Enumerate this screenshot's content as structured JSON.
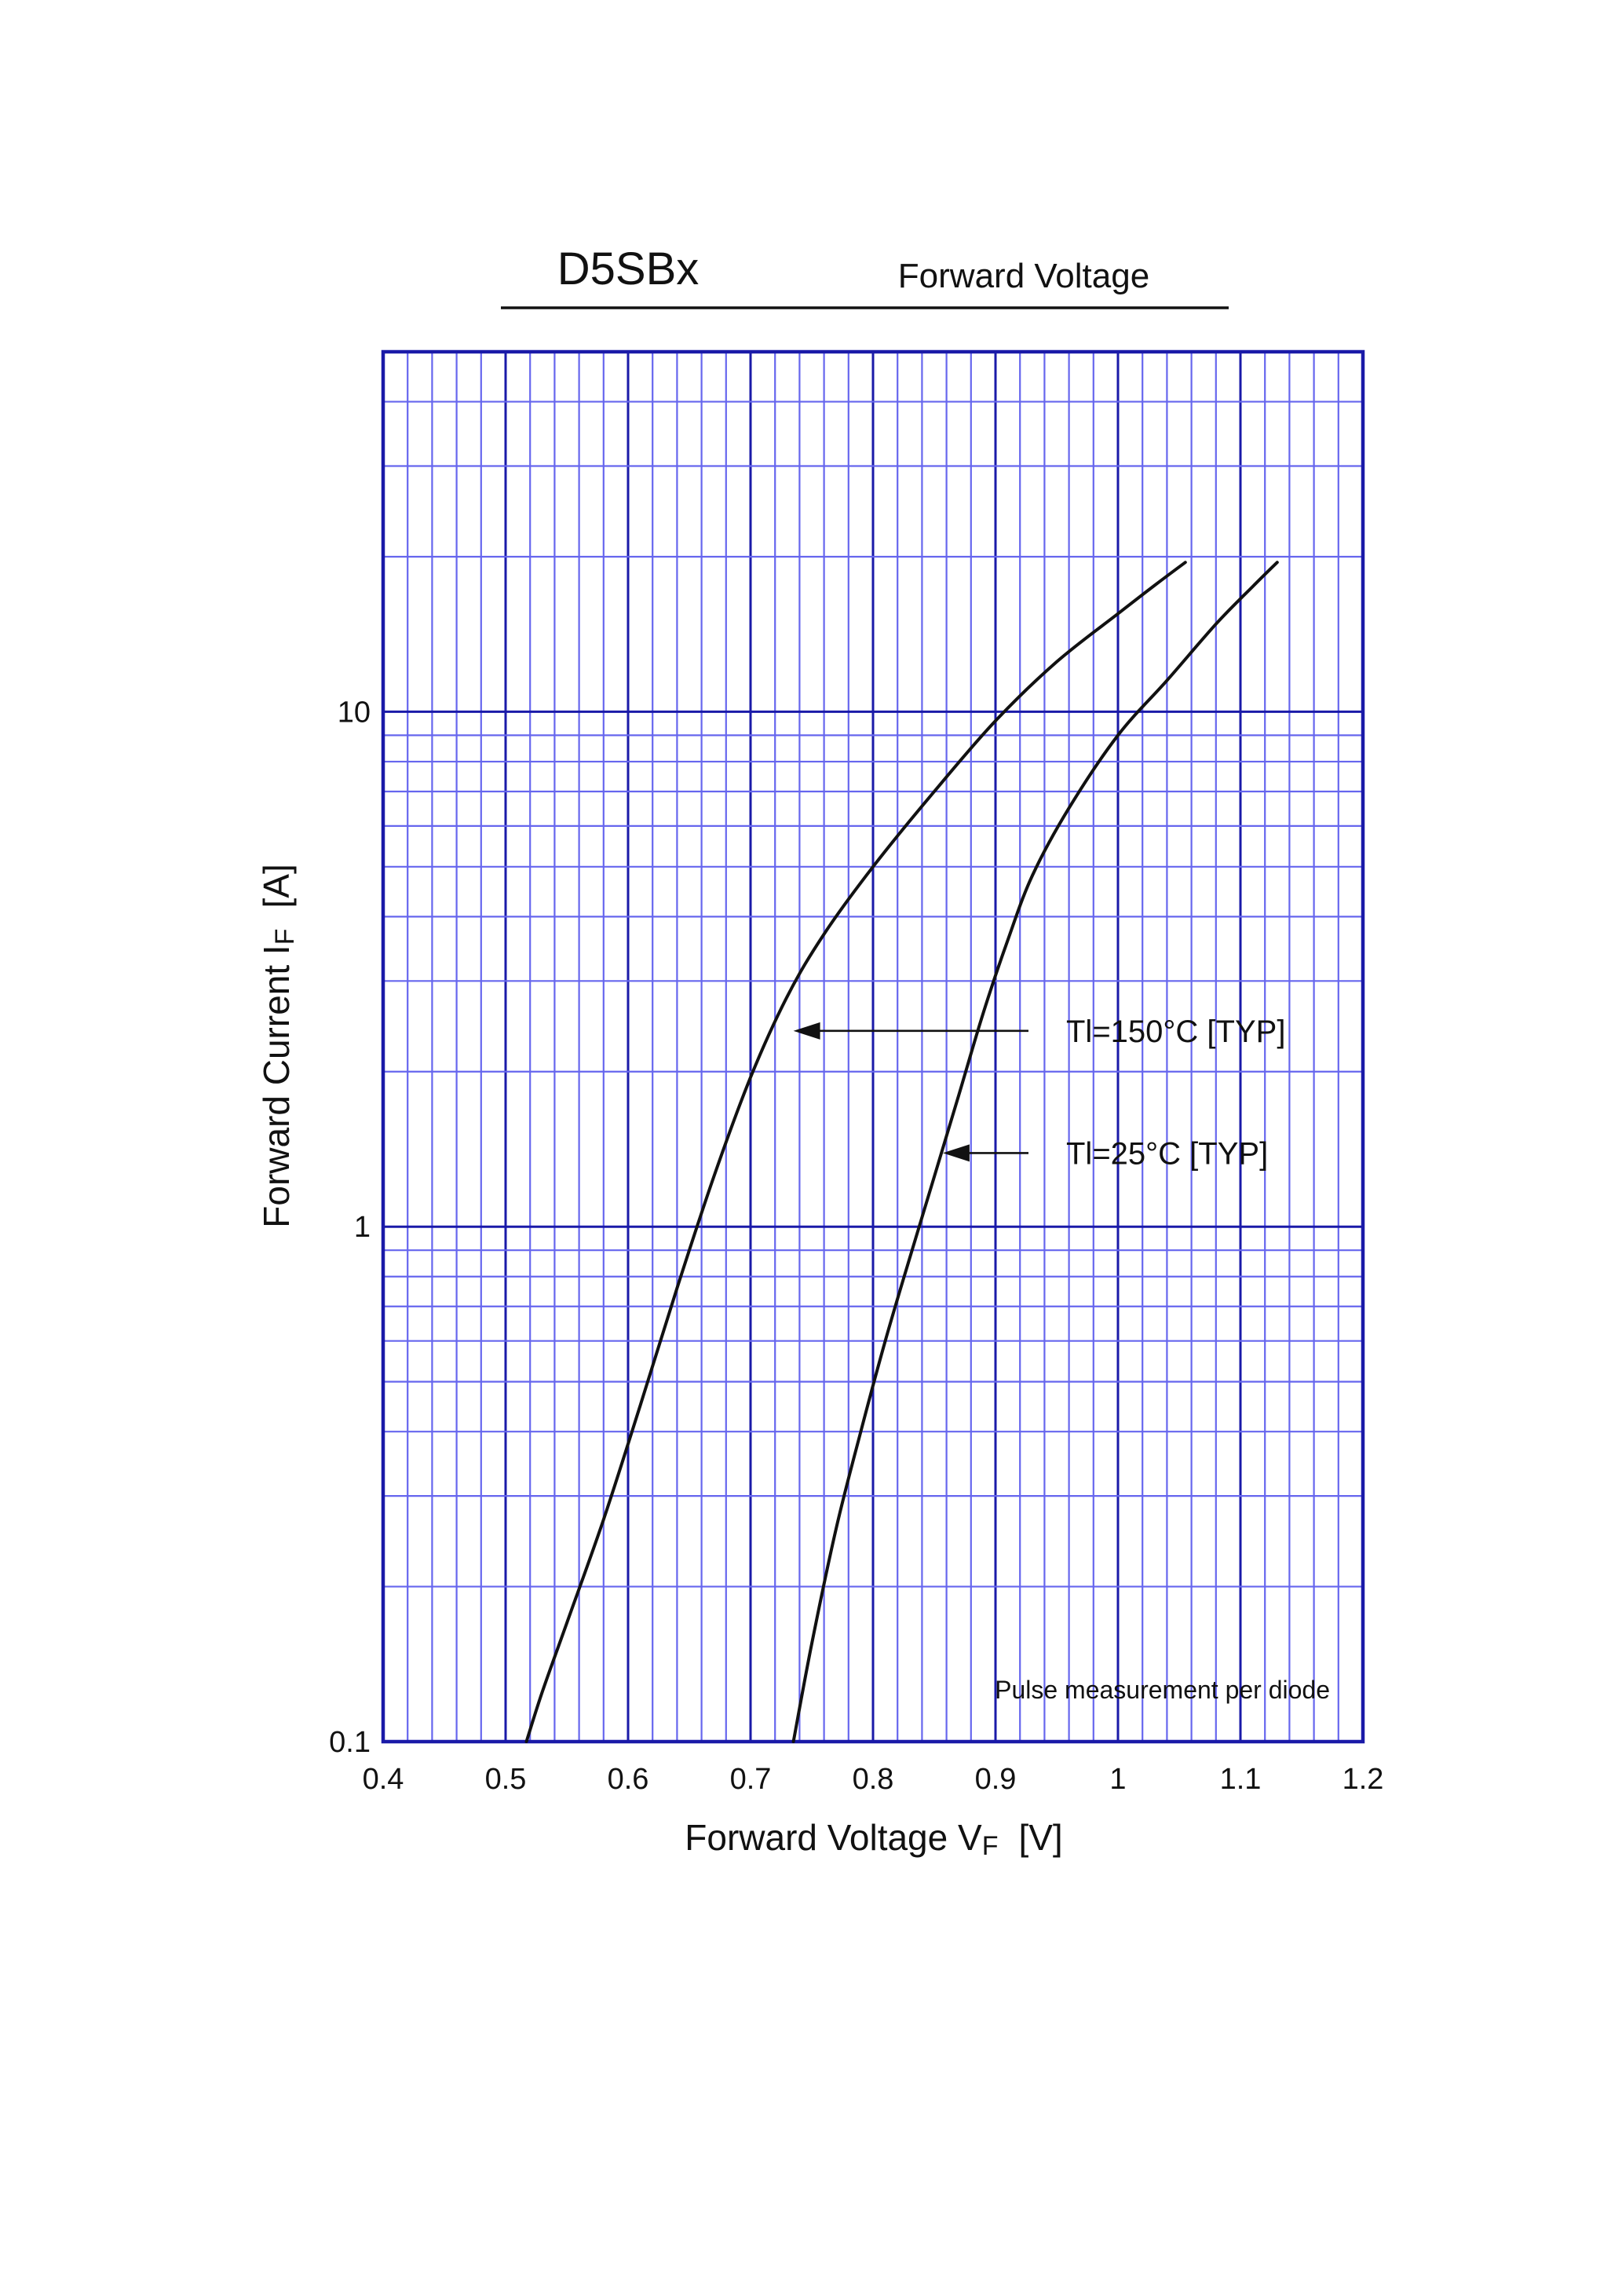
{
  "chart_data": {
    "type": "line",
    "title": "D5SBx",
    "subtitle": "Forward Voltage",
    "xlabel": {
      "main": "Forward Voltage  V",
      "sub": "F",
      "unit": "[V]"
    },
    "ylabel": {
      "main": "Forward Current  I",
      "sub": "F",
      "unit": "[A]"
    },
    "xlim": [
      0.4,
      1.2
    ],
    "ylim": [
      0.1,
      50
    ],
    "yscale": "log",
    "grid": true,
    "x_ticks": [
      "0.4",
      "0.5",
      "0.6",
      "0.7",
      "0.8",
      "0.9",
      "1",
      "1.1",
      "1.2"
    ],
    "y_ticks": [
      "0.1",
      "1",
      "10"
    ],
    "note": "Pulse measurement per diode",
    "series": [
      {
        "name": "Tl=150°C [TYP]",
        "x": [
          0.517,
          0.53,
          0.55,
          0.58,
          0.61,
          0.64,
          0.67,
          0.7,
          0.73,
          0.76,
          0.8,
          0.85,
          0.9,
          0.95,
          1.0,
          1.03,
          1.055
        ],
        "y": [
          0.1,
          0.125,
          0.17,
          0.27,
          0.45,
          0.76,
          1.25,
          1.95,
          2.8,
          3.7,
          5.0,
          7.0,
          9.6,
          12.5,
          15.5,
          17.6,
          19.5
        ]
      },
      {
        "name": "Tl=25°C [TYP]",
        "x": [
          0.735,
          0.75,
          0.77,
          0.79,
          0.81,
          0.83,
          0.85,
          0.87,
          0.89,
          0.91,
          0.93,
          0.96,
          1.0,
          1.04,
          1.08,
          1.11,
          1.13
        ],
        "y": [
          0.1,
          0.155,
          0.26,
          0.4,
          0.6,
          0.87,
          1.25,
          1.8,
          2.6,
          3.6,
          4.8,
          6.5,
          9.0,
          11.5,
          14.8,
          17.5,
          19.5
        ]
      }
    ],
    "annotations": [
      {
        "text": "Tl=150°C [TYP]",
        "series": 0,
        "point": [
          0.735,
          2.4
        ]
      },
      {
        "text": "Tl=25°C [TYP]",
        "series": 1,
        "point": [
          0.857,
          1.39
        ]
      }
    ]
  }
}
